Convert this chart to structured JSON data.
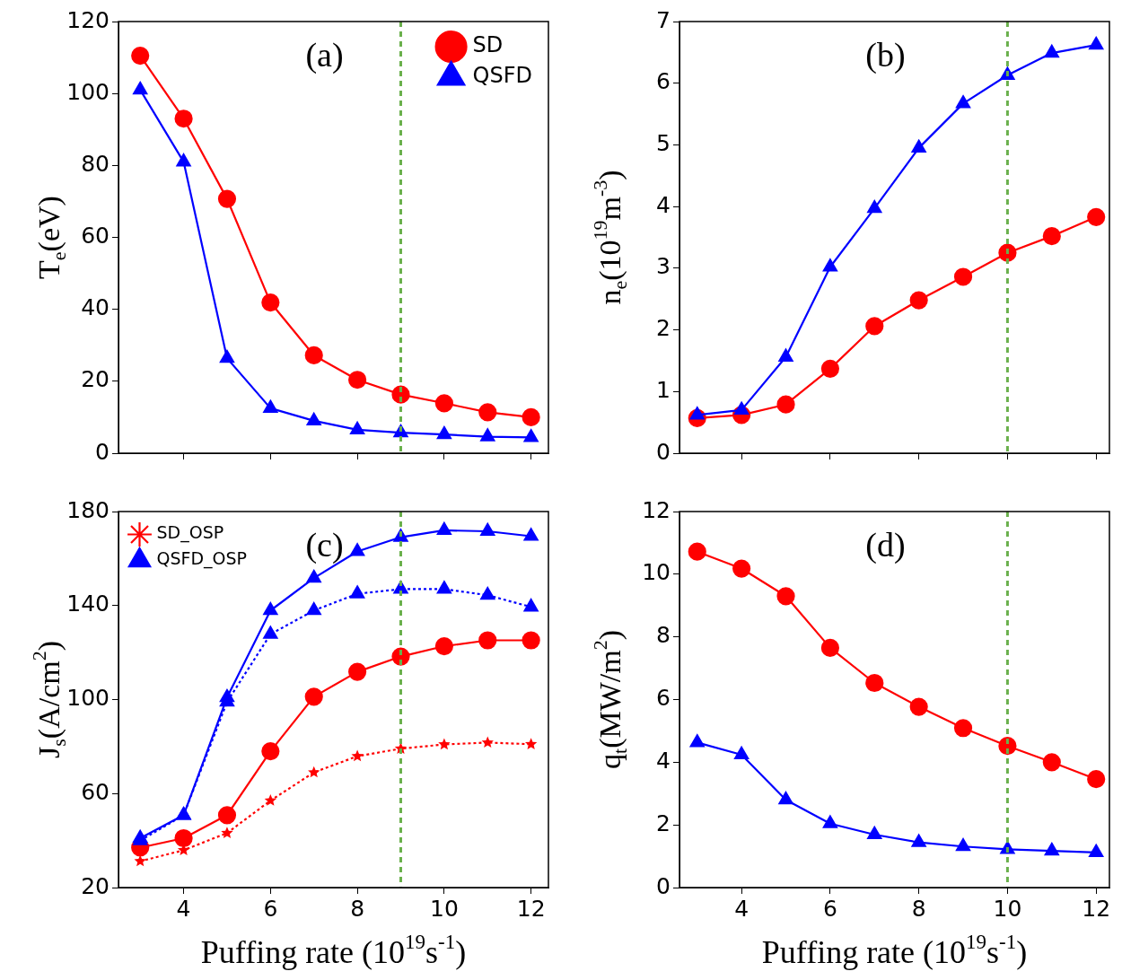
{
  "chart_data": [
    {
      "type": "line",
      "annotations": [
        "(a)"
      ],
      "ylabel": "T$_{e}$(eV)",
      "x": [
        3,
        4,
        5,
        6,
        7,
        8,
        9,
        10,
        11,
        12
      ],
      "xlim": [
        2.5,
        12.4
      ],
      "xticks": [
        4,
        6,
        8,
        10,
        12
      ],
      "ylim": [
        0,
        120
      ],
      "yticks": [
        0,
        20,
        40,
        60,
        80,
        100,
        120
      ],
      "tick_labels": "y",
      "grid": false,
      "legend": "top right",
      "ref_lines": [
        {
          "axis": "x",
          "value": 9,
          "color": "#6ab04c",
          "line_style": "dashed"
        }
      ],
      "series": [
        {
          "name": "SD",
          "color": "#ff0000",
          "marker": "circle",
          "line_style": "solid",
          "values": [
            110.5,
            93,
            70.7,
            41.9,
            27.2,
            20.4,
            16.3,
            13.9,
            11.4,
            10
          ]
        },
        {
          "name": "QSFD",
          "color": "#0000ff",
          "marker": "triangle",
          "line_style": "solid",
          "values": [
            101,
            81,
            26.4,
            12.5,
            9,
            6.5,
            5.7,
            5.2,
            4.6,
            4.4
          ]
        }
      ]
    },
    {
      "type": "line",
      "annotations": [
        "(b)"
      ],
      "ylabel": "n$_{e}$(10$^{19}$m$^{-3}$)",
      "x": [
        3,
        4,
        5,
        6,
        7,
        8,
        9,
        10,
        11,
        12
      ],
      "xlim": [
        2.6,
        12.3
      ],
      "xticks": [
        4,
        6,
        8,
        10,
        12
      ],
      "ylim": [
        0,
        7
      ],
      "yticks": [
        0,
        1,
        2,
        3,
        4,
        5,
        6,
        7
      ],
      "tick_labels": "y",
      "grid": false,
      "ref_lines": [
        {
          "axis": "x",
          "value": 10,
          "color": "#6ab04c",
          "line_style": "dashed"
        }
      ],
      "series": [
        {
          "color": "#ff0000",
          "marker": "circle",
          "line_style": "solid",
          "values": [
            0.57,
            0.62,
            0.79,
            1.37,
            2.06,
            2.48,
            2.86,
            3.25,
            3.52,
            3.83
          ]
        },
        {
          "color": "#0000ff",
          "marker": "triangle",
          "line_style": "solid",
          "values": [
            0.62,
            0.7,
            1.56,
            3.02,
            3.97,
            4.95,
            5.67,
            6.13,
            6.49,
            6.62
          ]
        }
      ]
    },
    {
      "type": "line",
      "annotations": [
        "(c)"
      ],
      "ylabel": "J$_{s}$(A/cm$^{2}$)",
      "xlabel": "Puffing rate (10$^{19}$s$^{-1}$)",
      "x": [
        3,
        4,
        5,
        6,
        7,
        8,
        9,
        10,
        11,
        12
      ],
      "xlim": [
        2.5,
        12.4
      ],
      "xticks": [
        4,
        6,
        8,
        10,
        12
      ],
      "ylim": [
        20,
        180
      ],
      "yticks": [
        20,
        60,
        100,
        140,
        180
      ],
      "grid": false,
      "legend": "top left",
      "ref_lines": [
        {
          "axis": "x",
          "value": 9,
          "color": "#6ab04c",
          "line_style": "dashed"
        }
      ],
      "series": [
        {
          "color": "#ff0000",
          "marker": "circle",
          "line_style": "solid",
          "values": [
            37,
            41,
            50.8,
            78,
            101.2,
            111.8,
            118.3,
            122.7,
            125.2,
            125.2
          ]
        },
        {
          "color": "#0000ff",
          "marker": "triangle",
          "line_style": "solid",
          "values": [
            41,
            50.8,
            100.9,
            137.9,
            151.7,
            163,
            169.1,
            172,
            171.6,
            169.5
          ]
        },
        {
          "name": "SD_OSP",
          "color": "#ff0000",
          "marker": "star",
          "line_style": "dotted",
          "values": [
            31.2,
            35.9,
            43.2,
            57,
            69,
            75.9,
            79.1,
            80.9,
            81.7,
            81
          ]
        },
        {
          "name": "QSFD_OSP",
          "color": "#0000ff",
          "marker": "triangle",
          "line_style": "dotted",
          "values": [
            40,
            50.8,
            99,
            127.8,
            137.9,
            145,
            147,
            147,
            144.4,
            139.4
          ]
        }
      ]
    },
    {
      "type": "line",
      "annotations": [
        "(d)"
      ],
      "ylabel": "q$_{t}$(MW/m$^{2}$)",
      "xlabel": "Puffing rate (10$^{19}$s$^{-1}$)",
      "x": [
        3,
        4,
        5,
        6,
        7,
        8,
        9,
        10,
        11,
        12
      ],
      "xlim": [
        2.6,
        12.3
      ],
      "xticks": [
        4,
        6,
        8,
        10,
        12
      ],
      "ylim": [
        0,
        12
      ],
      "yticks": [
        0,
        2,
        4,
        6,
        8,
        10,
        12
      ],
      "grid": false,
      "ref_lines": [
        {
          "axis": "x",
          "value": 10,
          "color": "#6ab04c",
          "line_style": "dashed"
        }
      ],
      "series": [
        {
          "color": "#ff0000",
          "marker": "circle",
          "line_style": "solid",
          "values": [
            10.72,
            10.18,
            9.3,
            7.65,
            6.53,
            5.77,
            5.09,
            4.52,
            4,
            3.46
          ]
        },
        {
          "color": "#0000ff",
          "marker": "triangle",
          "line_style": "solid",
          "values": [
            4.63,
            4.24,
            2.8,
            2.04,
            1.69,
            1.44,
            1.31,
            1.22,
            1.17,
            1.12
          ]
        }
      ]
    }
  ]
}
